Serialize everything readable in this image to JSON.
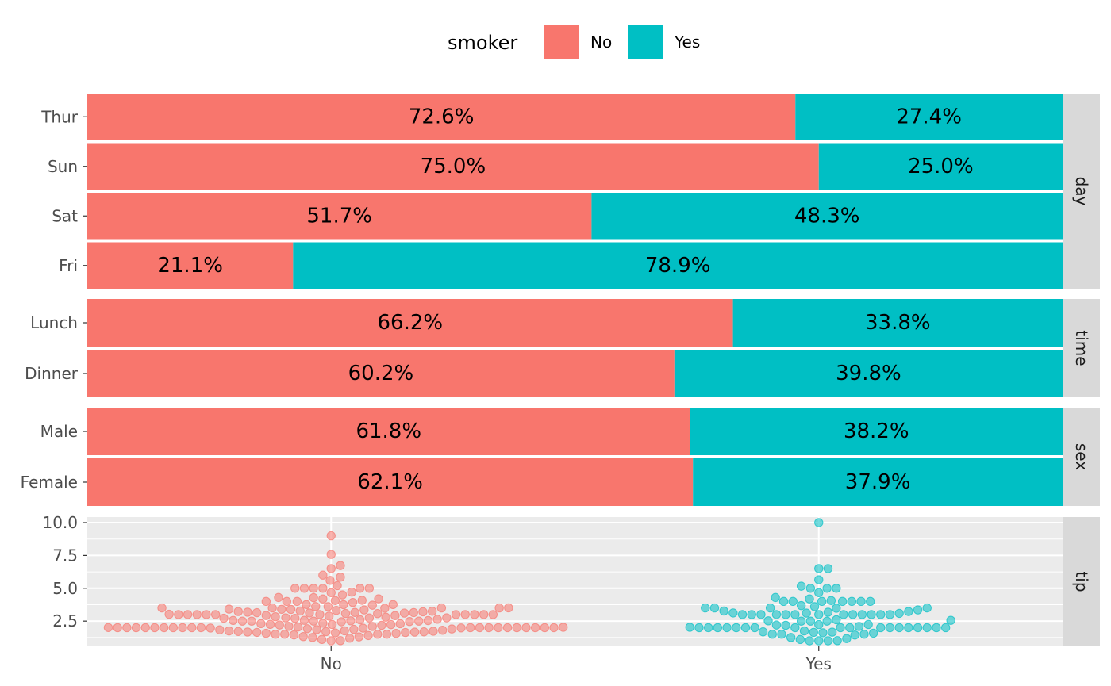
{
  "legend": {
    "title": "smoker",
    "entries": [
      {
        "label": "No",
        "color": "#F8766D"
      },
      {
        "label": "Yes",
        "color": "#00BFC4"
      }
    ]
  },
  "chart_data": [
    {
      "type": "bar",
      "orientation": "horizontal",
      "stacked": true,
      "facet": "day",
      "categories": [
        "Thur",
        "Sun",
        "Sat",
        "Fri"
      ],
      "series": [
        {
          "name": "No",
          "values": [
            72.6,
            75.0,
            51.7,
            21.1
          ]
        },
        {
          "name": "Yes",
          "values": [
            27.4,
            25.0,
            48.3,
            78.9
          ]
        }
      ],
      "labels": [
        [
          "72.6%",
          "75.0%",
          "51.7%",
          "21.1%"
        ],
        [
          "27.4%",
          "25.0%",
          "48.3%",
          "78.9%"
        ]
      ],
      "xlim": [
        0,
        100
      ]
    },
    {
      "type": "bar",
      "orientation": "horizontal",
      "stacked": true,
      "facet": "time",
      "categories": [
        "Lunch",
        "Dinner"
      ],
      "series": [
        {
          "name": "No",
          "values": [
            66.2,
            60.2
          ]
        },
        {
          "name": "Yes",
          "values": [
            33.8,
            39.8
          ]
        }
      ],
      "labels": [
        [
          "66.2%",
          "60.2%"
        ],
        [
          "33.8%",
          "39.8%"
        ]
      ],
      "xlim": [
        0,
        100
      ]
    },
    {
      "type": "bar",
      "orientation": "horizontal",
      "stacked": true,
      "facet": "sex",
      "categories": [
        "Male",
        "Female"
      ],
      "series": [
        {
          "name": "No",
          "values": [
            61.8,
            62.1
          ]
        },
        {
          "name": "Yes",
          "values": [
            38.2,
            37.9
          ]
        }
      ],
      "labels": [
        [
          "61.8%",
          "62.1%"
        ],
        [
          "38.2%",
          "37.9%"
        ]
      ],
      "xlim": [
        0,
        100
      ]
    },
    {
      "type": "scatter",
      "facet": "tip",
      "jitter": "beeswarm",
      "categories": [
        "No",
        "Yes"
      ],
      "yticks": [
        "10.0",
        "7.5",
        "5.0",
        "2.5"
      ],
      "ylim": [
        1.0,
        10.0
      ],
      "series": [
        {
          "name": "No",
          "values": [
            1.0,
            1.01,
            1.1,
            1.2,
            1.25,
            1.3,
            1.32,
            1.4,
            1.45,
            1.5,
            1.5,
            1.5,
            1.5,
            1.56,
            1.57,
            1.6,
            1.63,
            1.64,
            1.66,
            1.67,
            1.68,
            1.7,
            1.71,
            1.73,
            1.75,
            1.76,
            1.8,
            1.83,
            1.85,
            1.87,
            1.9,
            1.92,
            1.96,
            1.97,
            1.98,
            2.0,
            2.0,
            2.0,
            2.0,
            2.0,
            2.0,
            2.0,
            2.0,
            2.0,
            2.0,
            2.0,
            2.0,
            2.0,
            2.0,
            2.0,
            2.0,
            2.0,
            2.0,
            2.0,
            2.0,
            2.01,
            2.03,
            2.05,
            2.09,
            2.1,
            2.18,
            2.2,
            2.23,
            2.24,
            2.25,
            2.3,
            2.31,
            2.34,
            2.45,
            2.47,
            2.5,
            2.5,
            2.5,
            2.5,
            2.52,
            2.54,
            2.55,
            2.56,
            2.6,
            2.64,
            2.71,
            2.72,
            2.74,
            2.75,
            2.75,
            2.8,
            2.83,
            2.88,
            2.92,
            2.93,
            3.0,
            3.0,
            3.0,
            3.0,
            3.0,
            3.0,
            3.0,
            3.0,
            3.0,
            3.0,
            3.0,
            3.02,
            3.07,
            3.08,
            3.11,
            3.12,
            3.14,
            3.15,
            3.16,
            3.18,
            3.21,
            3.23,
            3.25,
            3.27,
            3.31,
            3.35,
            3.39,
            3.4,
            3.41,
            3.48,
            3.5,
            3.5,
            3.5,
            3.5,
            3.51,
            3.6,
            3.61,
            3.71,
            3.75,
            3.76,
            3.76,
            3.92,
            4.0,
            4.0,
            4.0,
            4.06,
            4.08,
            4.19,
            4.2,
            4.29,
            4.3,
            4.5,
            4.67,
            4.71,
            5.0,
            5.0,
            5.0,
            5.0,
            5.0,
            5.0,
            5.2,
            5.6,
            5.85,
            6.0,
            6.5,
            6.73,
            7.58,
            9.0
          ]
        },
        {
          "name": "Yes",
          "values": [
            1.0,
            1.0,
            1.0,
            1.01,
            1.1,
            1.17,
            1.25,
            1.44,
            1.5,
            1.5,
            1.5,
            1.58,
            1.61,
            1.64,
            1.66,
            1.68,
            1.75,
            2.0,
            2.0,
            2.0,
            2.0,
            2.0,
            2.0,
            2.0,
            2.0,
            2.0,
            2.0,
            2.0,
            2.0,
            2.0,
            2.0,
            2.0,
            2.0,
            2.0,
            2.0,
            2.03,
            2.09,
            2.18,
            2.2,
            2.23,
            2.24,
            2.5,
            2.5,
            2.5,
            2.52,
            2.56,
            2.6,
            3.0,
            3.0,
            3.0,
            3.0,
            3.0,
            3.0,
            3.0,
            3.0,
            3.0,
            3.0,
            3.0,
            3.0,
            3.0,
            3.09,
            3.11,
            3.12,
            3.18,
            3.23,
            3.27,
            3.35,
            3.48,
            3.5,
            3.5,
            3.5,
            3.5,
            3.6,
            3.68,
            4.0,
            4.0,
            4.0,
            4.0,
            4.0,
            4.0,
            4.0,
            4.06,
            4.19,
            4.3,
            4.67,
            5.0,
            5.0,
            5.0,
            5.16,
            5.65,
            6.5,
            6.5,
            10.0
          ]
        }
      ]
    }
  ]
}
